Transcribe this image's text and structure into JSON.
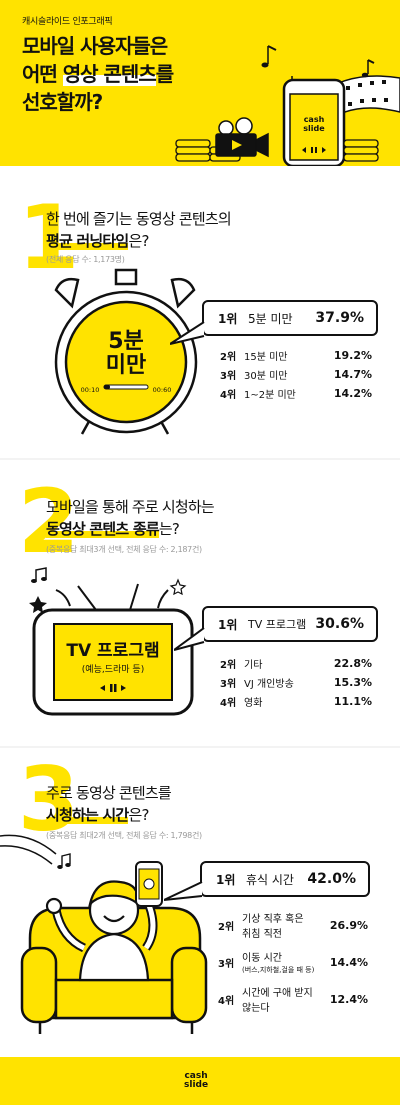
{
  "header": {
    "kicker": "캐시슬라이드 인포그래픽",
    "title_line1": "모바일 사용자들은",
    "title_line2_pre": "어떤 ",
    "title_line2_hl": "영상 콘텐츠",
    "title_line2_post": "를",
    "title_line3": "선호할까?",
    "logo_line1": "cash",
    "logo_line2": "slide"
  },
  "section1": {
    "number": "1",
    "question_line1": "한 번에 즐기는 동영상 콘텐츠의",
    "question_bold": "평균 러닝타임",
    "question_tail": "은?",
    "note": "(전체 응답 수: 1,173명)",
    "clock_text_line1": "5분",
    "clock_text_line2": "미만",
    "clock_start": "00:10",
    "clock_end": "00:60",
    "top": {
      "rank": "1위",
      "label": "5분 미만",
      "percent": "37.9%",
      "value": 37.9
    },
    "others": [
      {
        "rank": "2위",
        "label": "15분 미만",
        "percent": "19.2%",
        "value": 19.2
      },
      {
        "rank": "3위",
        "label": "30분 미만",
        "percent": "14.7%",
        "value": 14.7
      },
      {
        "rank": "4위",
        "label": "1~2분 미만",
        "percent": "14.2%",
        "value": 14.2
      }
    ]
  },
  "section2": {
    "number": "2",
    "question_line1": "모바일을 통해 주로 시청하는",
    "question_bold": "동영상 콘텐츠 종류",
    "question_tail": "는?",
    "note": "(중복응답 최대3개 선택, 전체 응답 수: 2,187건)",
    "tv_title": "TV 프로그램",
    "tv_sub": "(예능,드라마 등)",
    "top": {
      "rank": "1위",
      "label": "TV 프로그램",
      "percent": "30.6%",
      "value": 30.6
    },
    "others": [
      {
        "rank": "2위",
        "label": "기타",
        "percent": "22.8%",
        "value": 22.8
      },
      {
        "rank": "3위",
        "label": "VJ 개인방송",
        "percent": "15.3%",
        "value": 15.3
      },
      {
        "rank": "4위",
        "label": "영화",
        "percent": "11.1%",
        "value": 11.1
      }
    ]
  },
  "section3": {
    "number": "3",
    "question_line1": "주로 동영상 콘텐츠를",
    "question_bold": "시청하는 시간",
    "question_tail": "은?",
    "note": "(중복응답 최대2개 선택, 전체 응답 수: 1,798건)",
    "top": {
      "rank": "1위",
      "label": "휴식 시간",
      "percent": "42.0%",
      "value": 42.0
    },
    "others": [
      {
        "rank": "2위",
        "label": "기상 직후 혹은",
        "label2": "취침 직전",
        "sub": "",
        "percent": "26.9%",
        "value": 26.9
      },
      {
        "rank": "3위",
        "label": "이동 시간",
        "label2": "",
        "sub": "(버스,지하철,걸을 때 등)",
        "percent": "14.4%",
        "value": 14.4
      },
      {
        "rank": "4위",
        "label": "시간에 구애 받지",
        "label2": "않는다",
        "sub": "",
        "percent": "12.4%",
        "value": 12.4
      }
    ]
  },
  "footer": {
    "logo_line1": "cash",
    "logo_line2": "slide"
  }
}
